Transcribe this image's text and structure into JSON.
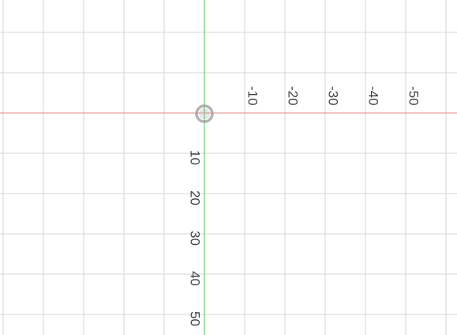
{
  "canvas": {
    "grid_spacing_units": 10,
    "colors": {
      "background": "#ffffff",
      "grid_line": "#d6d6d6",
      "x_axis": "#e58a8a",
      "y_axis": "#86d886",
      "origin_marker": "#9a9a9a",
      "tick_label": "#444444"
    },
    "x_axis_ticks": [
      {
        "value": -10,
        "label": "-10"
      },
      {
        "value": -20,
        "label": "-20"
      },
      {
        "value": -30,
        "label": "-30"
      },
      {
        "value": -40,
        "label": "-40"
      },
      {
        "value": -50,
        "label": "-50"
      }
    ],
    "y_axis_ticks": [
      {
        "value": 10,
        "label": "10"
      },
      {
        "value": 20,
        "label": "20"
      },
      {
        "value": 30,
        "label": "30"
      },
      {
        "value": 40,
        "label": "40"
      },
      {
        "value": 50,
        "label": "50"
      }
    ],
    "origin_marker_icon": "pivot-circle-icon"
  }
}
